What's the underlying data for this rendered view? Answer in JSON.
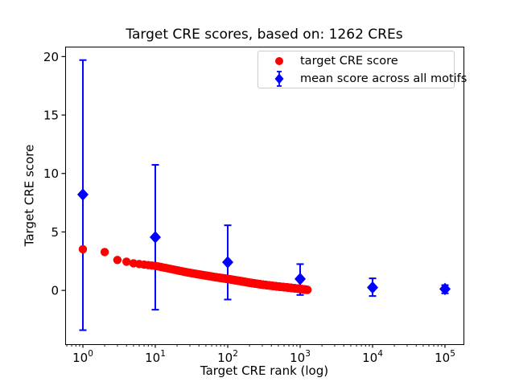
{
  "chart_data": {
    "type": "scatter",
    "title": "Target CRE scores, based on: 1262 CREs",
    "xlabel": "Target CRE rank (log)",
    "ylabel": "Target CRE score",
    "n_cres": 1262,
    "legend_labels": [
      "target CRE score",
      "mean score across all motifs"
    ],
    "legend_position": "upper right",
    "colors": {
      "target": "#ff0000",
      "mean": "#0000ff",
      "axis": "#000000",
      "legend_border": "#cccccc"
    },
    "axes": {
      "x_scale": "log",
      "x_tick_base": "10",
      "x_tick_decades": [
        0,
        1,
        2,
        3,
        4,
        5
      ],
      "y_ticks": [
        0,
        5,
        10,
        15,
        20
      ],
      "xlim_log10": [
        -0.2444,
        5.2556
      ],
      "ylim": [
        -4.6,
        20.85
      ],
      "grid": false
    },
    "series": [
      {
        "name": "target CRE score",
        "type": "points",
        "marker": "circle",
        "color": "#ff0000",
        "n_points": 1262,
        "curve_anchors": {
          "rank": [
            1,
            2,
            3,
            4,
            5,
            7,
            10,
            15,
            20,
            30,
            50,
            70,
            100,
            150,
            200,
            300,
            500,
            700,
            1000,
            1262
          ],
          "score": [
            3.52,
            3.28,
            2.6,
            2.46,
            2.32,
            2.2,
            2.1,
            1.88,
            1.72,
            1.5,
            1.27,
            1.12,
            0.98,
            0.8,
            0.66,
            0.5,
            0.33,
            0.24,
            0.13,
            0.05
          ]
        }
      },
      {
        "name": "mean score across all motifs",
        "type": "errorbar",
        "marker": "diamond",
        "color": "#0000ff",
        "points": [
          {
            "rank": 1,
            "mean": 8.2,
            "low": -3.4,
            "high": 19.7
          },
          {
            "rank": 10,
            "mean": 4.55,
            "low": -1.65,
            "high": 10.74
          },
          {
            "rank": 100,
            "mean": 2.41,
            "low": -0.78,
            "high": 5.57
          },
          {
            "rank": 1000,
            "mean": 0.98,
            "low": -0.39,
            "high": 2.25
          },
          {
            "rank": 10000,
            "mean": 0.25,
            "low": -0.48,
            "high": 1.03
          },
          {
            "rank": 100000,
            "mean": 0.12,
            "low": -0.25,
            "high": 0.45
          }
        ]
      }
    ]
  }
}
